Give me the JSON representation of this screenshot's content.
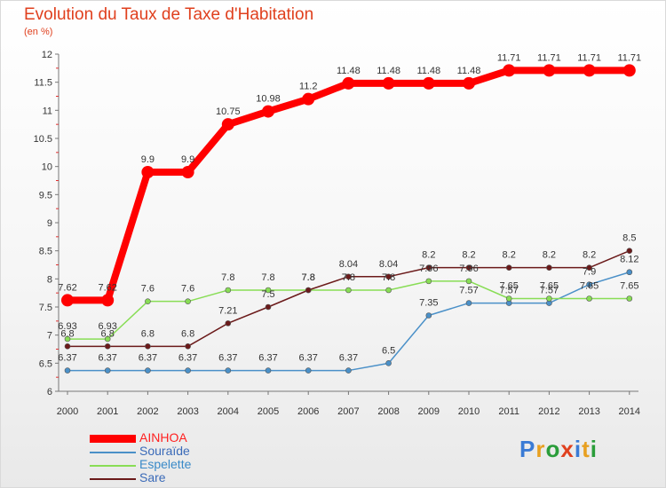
{
  "title": "Evolution du Taux de Taxe d'Habitation",
  "unit_label": "(en %)",
  "logo": {
    "text": "Proxiti",
    "colors": [
      "#3a7bd5",
      "#e8a020",
      "#2a9d3a",
      "#e0401e",
      "#3a7bd5",
      "#e8a020",
      "#2a9d3a"
    ]
  },
  "chart_data": {
    "type": "line",
    "title": "Evolution du Taux de Taxe d'Habitation",
    "ylabel": "(en %)",
    "xlabel": "",
    "x": [
      "2000",
      "2001",
      "2002",
      "2003",
      "2004",
      "2005",
      "2006",
      "2007",
      "2008",
      "2009",
      "2010",
      "2011",
      "2012",
      "2013",
      "2014"
    ],
    "ylim": [
      6,
      12
    ],
    "yticks": [
      "6",
      "6.5",
      "7",
      "7.5",
      "8",
      "8.5",
      "9",
      "9.5",
      "10",
      "10.5",
      "11",
      "11.5",
      "12"
    ],
    "grid": false,
    "legend_position": "bottom-left",
    "series": [
      {
        "name": "AINHOA",
        "color": "#ff0000",
        "values": [
          7.62,
          7.62,
          9.9,
          9.9,
          10.75,
          10.98,
          11.2,
          11.48,
          11.48,
          11.48,
          11.48,
          11.71,
          11.71,
          11.71,
          11.71
        ]
      },
      {
        "name": "Souraïde",
        "color": "#4a90c8",
        "values": [
          6.37,
          6.37,
          6.37,
          6.37,
          6.37,
          6.37,
          6.37,
          6.37,
          6.5,
          7.35,
          7.57,
          7.57,
          7.57,
          7.9,
          8.12
        ]
      },
      {
        "name": "Espelette",
        "color": "#88dd55",
        "values": [
          6.93,
          6.93,
          7.6,
          7.6,
          7.8,
          7.8,
          7.8,
          7.8,
          7.8,
          7.96,
          7.96,
          7.65,
          7.65,
          7.65,
          7.65
        ]
      },
      {
        "name": "Sare",
        "color": "#6b1a1a",
        "values": [
          6.8,
          6.8,
          6.8,
          6.8,
          7.21,
          7.5,
          7.8,
          8.04,
          8.04,
          8.2,
          8.2,
          8.2,
          8.2,
          8.2,
          8.5
        ]
      }
    ]
  }
}
